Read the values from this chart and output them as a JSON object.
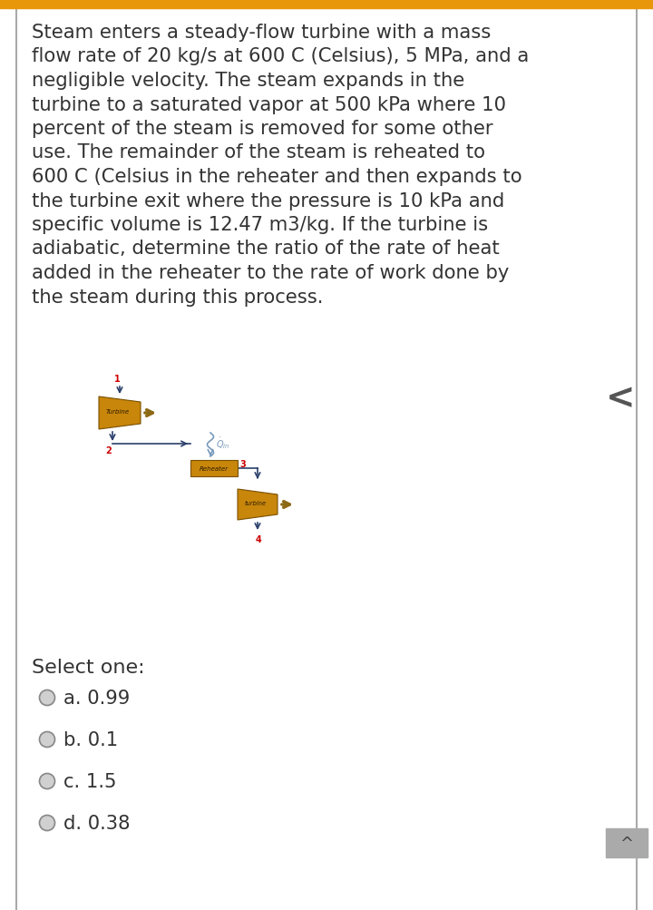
{
  "bg_color": "#ffffff",
  "top_bar_color": "#e8960a",
  "border_color": "#aaaaaa",
  "question_text_lines": [
    "Steam enters a steady-flow turbine with a mass",
    "flow rate of 20 kg/s at 600 C (Celsius), 5 MPa, and a",
    "negligible velocity. The steam expands in the",
    "turbine to a saturated vapor at 500 kPa where 10",
    "percent of the steam is removed for some other",
    "use. The remainder of the steam is reheated to",
    "600 C (Celsius in the reheater and then expands to",
    "the turbine exit where the pressure is 10 kPa and",
    "specific volume is 12.47 m3/kg. If the turbine is",
    "adiabatic, determine the ratio of the rate of heat",
    "added in the reheater to the rate of work done by",
    "the steam during this process."
  ],
  "select_text": "Select one:",
  "options": [
    "a. 0.99",
    "b. 0.1",
    "c. 1.5",
    "d. 0.38"
  ],
  "turbine_face_color": "#c8860a",
  "turbine_edge_color": "#7a5000",
  "flow_arrow_color": "#2a3f6b",
  "work_arrow_color": "#8B6914",
  "heat_wave_color": "#7799bb",
  "label_color": "#cc0000",
  "text_color": "#333333",
  "radio_fill": "#d0d0d0",
  "radio_edge": "#888888",
  "nav_color": "#555555",
  "scroll_bg": "#aaaaaa",
  "text_fontsize": 15.2,
  "select_fontsize": 16.0,
  "option_fontsize": 15.2
}
